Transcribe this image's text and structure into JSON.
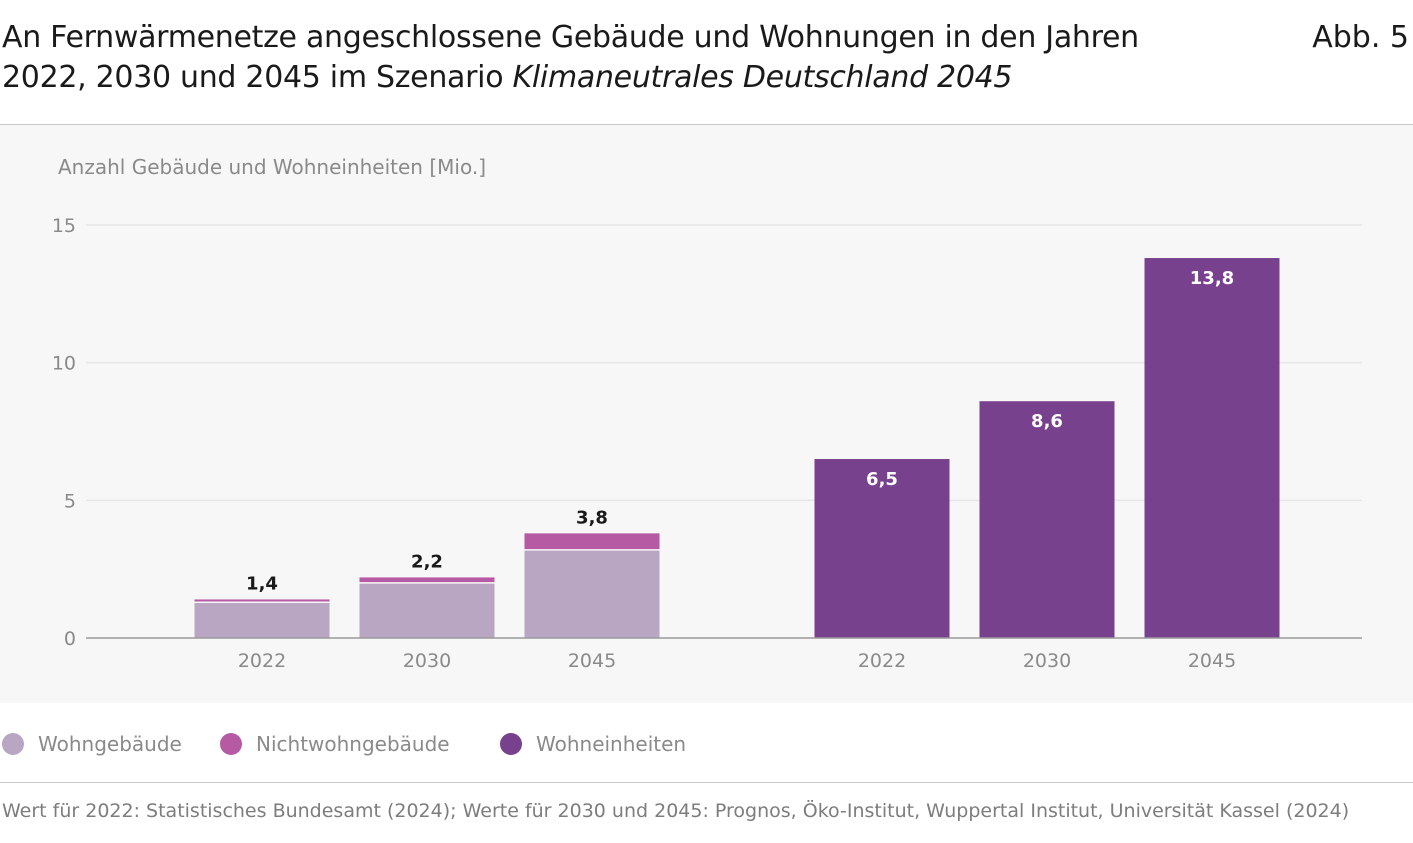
{
  "header": {
    "title_part1": "An Fernwärmenetze angeschlossene Gebäude und Wohnungen in den Jahren 2022, 2030 und 2045 im Szenario ",
    "title_italic": "Klimaneutrales Deutschland 2045",
    "figure_label": "Abb. 5"
  },
  "colors": {
    "wohngebaeude": "#b8a6c2",
    "nichtwohngebaeude": "#b65aa3",
    "wohneinheiten": "#78418e",
    "panel_background": "#f7f7f7",
    "gridline": "#e6e6e6",
    "axis": "#9a9a9a"
  },
  "chart_data": {
    "type": "bar",
    "ylabel": "Anzahl Gebäude und Wohneinheiten [Mio.]",
    "ylim": [
      0,
      15
    ],
    "yticks": [
      0,
      5,
      10,
      15
    ],
    "grid": true,
    "groups": [
      {
        "stacked": true,
        "categories": [
          "2022",
          "2030",
          "2045"
        ],
        "series": [
          {
            "name": "Wohngebäude",
            "values": [
              1.3,
              2.0,
              3.2
            ]
          },
          {
            "name": "Nichtwohngebäude",
            "values": [
              0.1,
              0.2,
              0.6
            ]
          }
        ],
        "totals": [
          "1,4",
          "2,2",
          "3,8"
        ]
      },
      {
        "stacked": false,
        "categories": [
          "2022",
          "2030",
          "2045"
        ],
        "series": [
          {
            "name": "Wohneinheiten",
            "values": [
              6.5,
              8.6,
              13.8
            ]
          }
        ],
        "labels": [
          "6,5",
          "8,6",
          "13,8"
        ]
      }
    ]
  },
  "legend": [
    {
      "label": "Wohngebäude",
      "color": "#b8a6c2"
    },
    {
      "label": "Nichtwohngebäude",
      "color": "#b65aa3"
    },
    {
      "label": "Wohneinheiten",
      "color": "#78418e"
    }
  ],
  "footer": {
    "source": "Wert für 2022: Statistisches Bundesamt (2024); Werte für 2030 und 2045: Prognos, Öko-Institut, Wuppertal Institut, Universität Kassel (2024)"
  }
}
